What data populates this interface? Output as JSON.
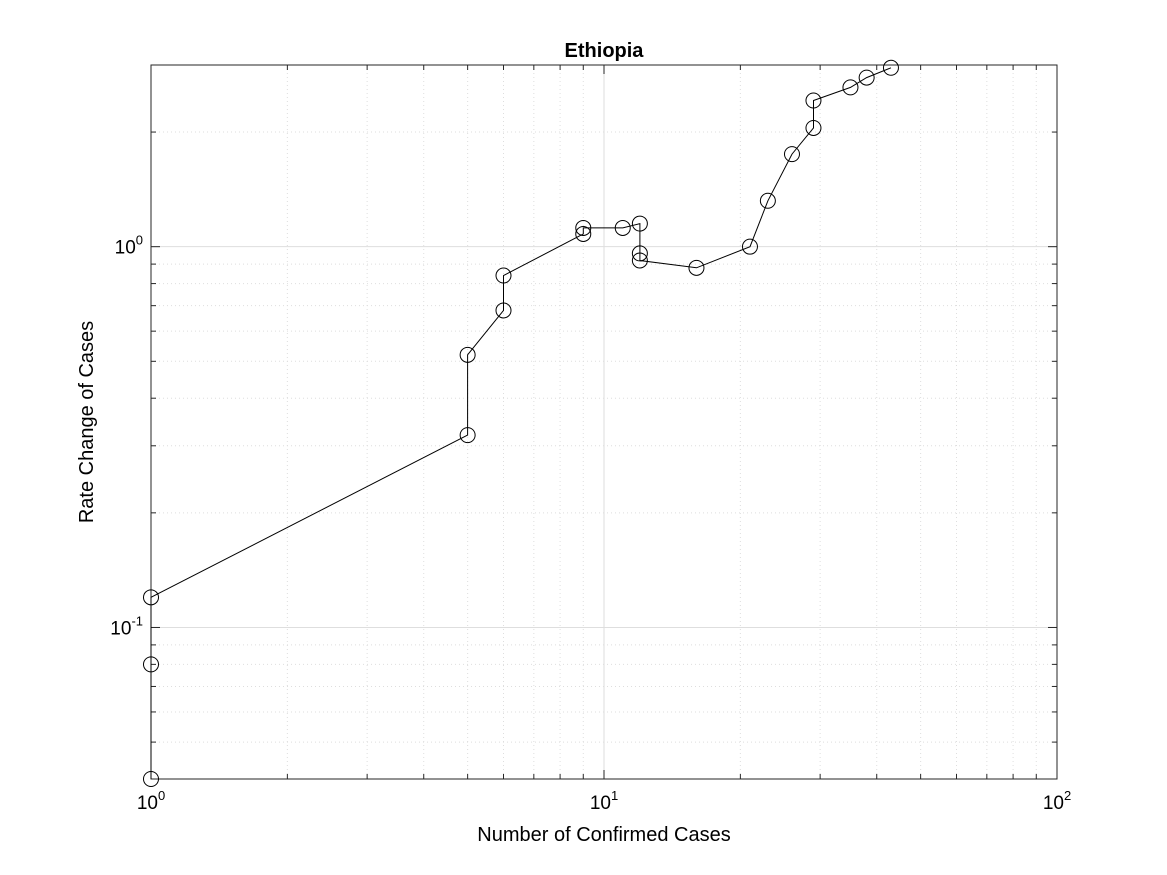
{
  "chart_data": {
    "type": "line",
    "title": "Ethiopia",
    "xlabel": "Number of Confirmed Cases",
    "ylabel": "Rate Change of Cases",
    "xscale": "log",
    "yscale": "log",
    "xlim": [
      1,
      100
    ],
    "ylim": [
      0.04,
      3.0
    ],
    "grid": true,
    "minor_grid": true,
    "marker": "circle",
    "line_color": "#000000",
    "grid_color": "#dedede",
    "x_tick_labels": [
      {
        "base": "10",
        "exp": "0",
        "value": 1
      },
      {
        "base": "10",
        "exp": "1",
        "value": 10
      },
      {
        "base": "10",
        "exp": "2",
        "value": 100
      }
    ],
    "y_tick_labels": [
      {
        "base": "10",
        "exp": "-1",
        "value": 0.1
      },
      {
        "base": "10",
        "exp": "0",
        "value": 1
      }
    ],
    "series": [
      {
        "x": [
          1,
          1,
          1,
          5,
          5,
          6,
          6,
          9,
          9,
          11,
          12,
          12,
          12,
          16,
          21,
          23,
          26,
          29,
          29,
          35,
          38,
          43
        ],
        "y": [
          0.04,
          0.08,
          0.12,
          0.32,
          0.52,
          0.68,
          0.84,
          1.08,
          1.12,
          1.12,
          1.15,
          0.96,
          0.92,
          0.88,
          1.0,
          1.32,
          1.75,
          2.05,
          2.42,
          2.62,
          2.78,
          2.95
        ]
      }
    ]
  }
}
